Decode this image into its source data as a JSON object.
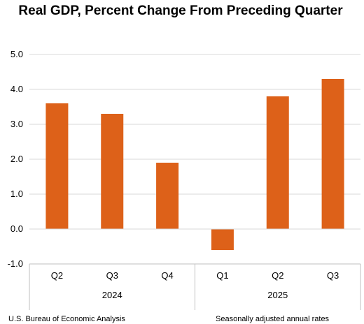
{
  "chart_data": {
    "type": "bar",
    "title": "Real GDP, Percent Change From Preceding Quarter",
    "categories": [
      "Q2",
      "Q3",
      "Q4",
      "Q1",
      "Q2",
      "Q3"
    ],
    "groups": [
      {
        "label": "2024",
        "count": 3
      },
      {
        "label": "2025",
        "count": 3
      }
    ],
    "values": [
      3.6,
      3.3,
      1.9,
      -0.6,
      3.8,
      4.3
    ],
    "ylim": [
      -1.0,
      5.0
    ],
    "yticks": [
      "5.0",
      "4.0",
      "3.0",
      "2.0",
      "1.0",
      "0.0",
      "-1.0"
    ],
    "grid": true,
    "bar_color": "#dd6119",
    "source": "U.S. Bureau of Economic Analysis",
    "note": "Seasonally adjusted annual rates"
  }
}
